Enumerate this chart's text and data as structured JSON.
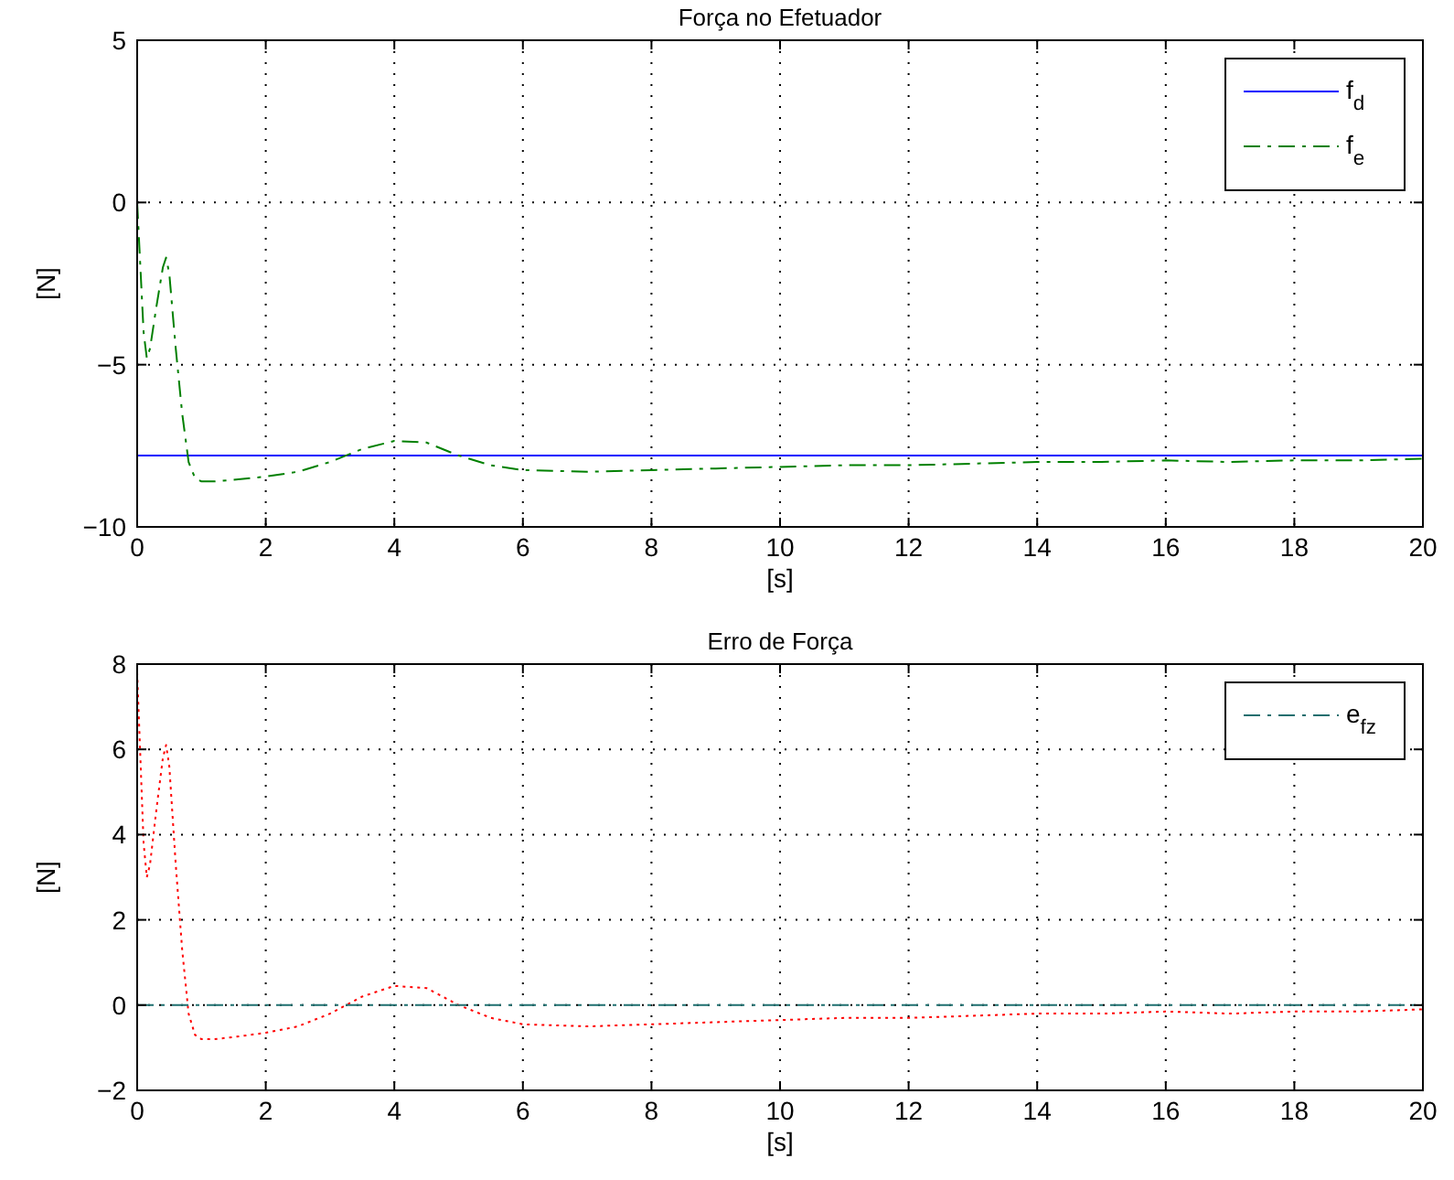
{
  "chart_data": [
    {
      "type": "line",
      "title": "Força no Efetuador",
      "xlabel": "[s]",
      "ylabel": "[N]",
      "xlim": [
        0,
        20
      ],
      "ylim": [
        -10,
        5
      ],
      "xticks": [
        0,
        2,
        4,
        6,
        8,
        10,
        12,
        14,
        16,
        18,
        20
      ],
      "yticks": [
        -10,
        -5,
        0,
        5
      ],
      "grid": true,
      "legend": "top right",
      "series": [
        {
          "name": "f$_{d}$",
          "color": "#0000ff",
          "line_style": "solid",
          "x": [
            0,
            20
          ],
          "values": [
            -7.8,
            -7.8
          ]
        },
        {
          "name": "f$_{e}$",
          "color": "#008000",
          "line_style": "dashed",
          "x": [
            0,
            0.05,
            0.1,
            0.15,
            0.2,
            0.3,
            0.4,
            0.45,
            0.5,
            0.6,
            0.7,
            0.8,
            0.9,
            1.0,
            1.2,
            1.5,
            2,
            2.5,
            3,
            3.5,
            4,
            4.5,
            5,
            5.5,
            6,
            7,
            8,
            9,
            10,
            11,
            12,
            13,
            14,
            15,
            16,
            17,
            18,
            19,
            20
          ],
          "values": [
            0,
            -2,
            -4,
            -4.8,
            -4.5,
            -3.2,
            -2.0,
            -1.7,
            -2.2,
            -4.5,
            -6.5,
            -8.0,
            -8.5,
            -8.6,
            -8.6,
            -8.55,
            -8.45,
            -8.3,
            -8.0,
            -7.6,
            -7.35,
            -7.4,
            -7.8,
            -8.1,
            -8.25,
            -8.3,
            -8.25,
            -8.2,
            -8.15,
            -8.1,
            -8.1,
            -8.05,
            -8.0,
            -8.0,
            -7.95,
            -8.0,
            -7.95,
            -7.95,
            -7.9
          ]
        }
      ]
    },
    {
      "type": "line",
      "title": "Erro de Força",
      "xlabel": "[s]",
      "ylabel": "[N]",
      "xlim": [
        0,
        20
      ],
      "ylim": [
        -2,
        8
      ],
      "xticks": [
        0,
        2,
        4,
        6,
        8,
        10,
        12,
        14,
        16,
        18,
        20
      ],
      "yticks": [
        -2,
        0,
        2,
        4,
        6,
        8
      ],
      "grid": true,
      "legend": "top right",
      "series": [
        {
          "color": "#ff0000",
          "line_style": "dotted",
          "x": [
            0,
            0.05,
            0.1,
            0.15,
            0.2,
            0.3,
            0.4,
            0.45,
            0.5,
            0.6,
            0.7,
            0.8,
            0.9,
            1.0,
            1.2,
            1.5,
            2,
            2.5,
            3,
            3.5,
            4,
            4.5,
            5,
            5.5,
            6,
            7,
            8,
            9,
            10,
            11,
            12,
            13,
            14,
            15,
            16,
            17,
            18,
            19,
            20
          ],
          "values": [
            7.8,
            5.8,
            3.8,
            3.0,
            3.3,
            4.6,
            5.8,
            6.1,
            5.6,
            3.3,
            1.3,
            -0.2,
            -0.7,
            -0.8,
            -0.8,
            -0.75,
            -0.65,
            -0.5,
            -0.2,
            0.2,
            0.45,
            0.4,
            0,
            -0.3,
            -0.45,
            -0.5,
            -0.45,
            -0.4,
            -0.35,
            -0.3,
            -0.3,
            -0.25,
            -0.2,
            -0.2,
            -0.15,
            -0.2,
            -0.15,
            -0.15,
            -0.1
          ]
        },
        {
          "name": "e$_{fz}$",
          "color": "#1f6f6f",
          "line_style": "dashed",
          "x": [
            0,
            20
          ],
          "values": [
            0,
            0
          ]
        }
      ]
    }
  ]
}
